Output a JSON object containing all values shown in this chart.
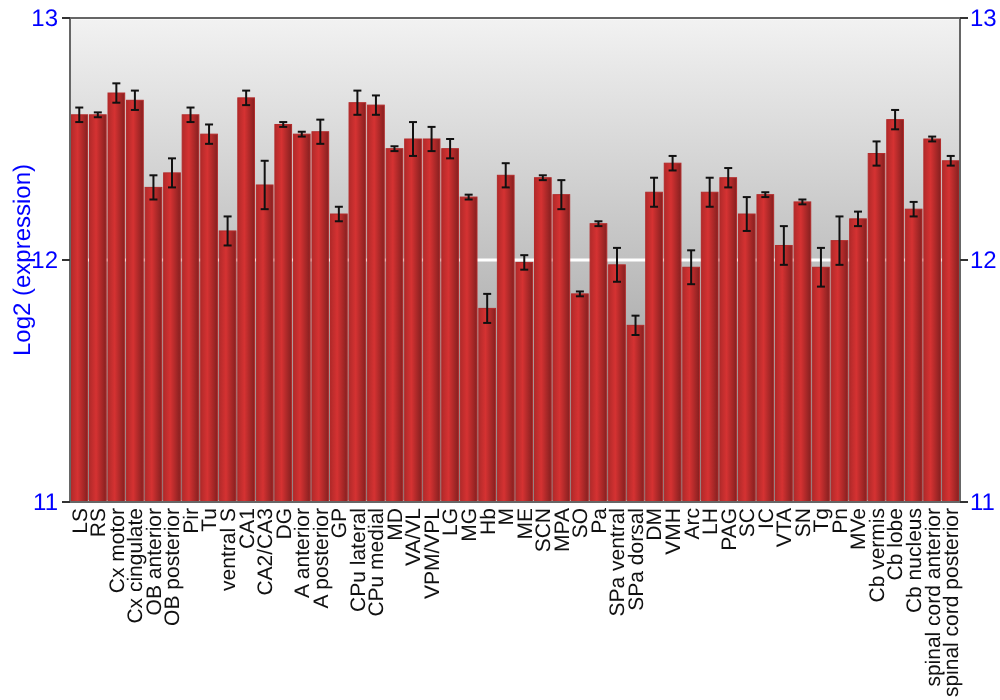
{
  "chart_data": {
    "type": "bar",
    "ylabel": "Log2 (expression)",
    "categories": [
      "LS",
      "RS",
      "Cx motor",
      "Cx cingulate",
      "OB anterior",
      "OB posterior",
      "Pir",
      "Tu",
      "ventral S",
      "CA1",
      "CA2/CA3",
      "DG",
      "A anterior",
      "A posterior",
      "GP",
      "CPu lateral",
      "CPu medial",
      "MD",
      "VA/VL",
      "VPM/VPL",
      "LG",
      "MG",
      "Hb",
      "M",
      "ME",
      "SCN",
      "MPA",
      "SO",
      "Pa",
      "SPa ventral",
      "SPa dorsal",
      "DM",
      "VMH",
      "Arc",
      "LH",
      "PAG",
      "SC",
      "IC",
      "VTA",
      "SN",
      "Tg",
      "Pn",
      "MVe",
      "Cb vermis",
      "Cb lobe",
      "Cb nucleus",
      "spinal cord anterior",
      "spinal cord posterior"
    ],
    "values": [
      12.6,
      12.6,
      12.69,
      12.66,
      12.3,
      12.36,
      12.6,
      12.52,
      12.12,
      12.67,
      12.31,
      12.56,
      12.52,
      12.53,
      12.19,
      12.65,
      12.64,
      12.46,
      12.5,
      12.5,
      12.46,
      12.26,
      11.8,
      12.35,
      11.99,
      12.34,
      12.27,
      11.86,
      12.15,
      11.98,
      11.73,
      12.28,
      12.4,
      11.97,
      12.28,
      12.34,
      12.19,
      12.27,
      12.06,
      12.24,
      11.97,
      12.08,
      12.17,
      12.44,
      12.58,
      12.21,
      12.5,
      12.41
    ],
    "errors": [
      0.03,
      0.01,
      0.04,
      0.04,
      0.05,
      0.06,
      0.03,
      0.04,
      0.06,
      0.03,
      0.1,
      0.01,
      0.01,
      0.05,
      0.03,
      0.05,
      0.04,
      0.01,
      0.07,
      0.05,
      0.04,
      0.01,
      0.06,
      0.05,
      0.03,
      0.01,
      0.06,
      0.01,
      0.01,
      0.07,
      0.04,
      0.06,
      0.03,
      0.07,
      0.06,
      0.04,
      0.07,
      0.01,
      0.08,
      0.01,
      0.08,
      0.1,
      0.03,
      0.05,
      0.04,
      0.03,
      0.01,
      0.02
    ],
    "color": "#b22a2a",
    "ylim": [
      11,
      13
    ],
    "yticks": [
      11,
      12,
      13
    ],
    "y2lim": [
      11,
      13
    ],
    "y2ticks": [
      11,
      12,
      13
    ],
    "grid": "y"
  }
}
